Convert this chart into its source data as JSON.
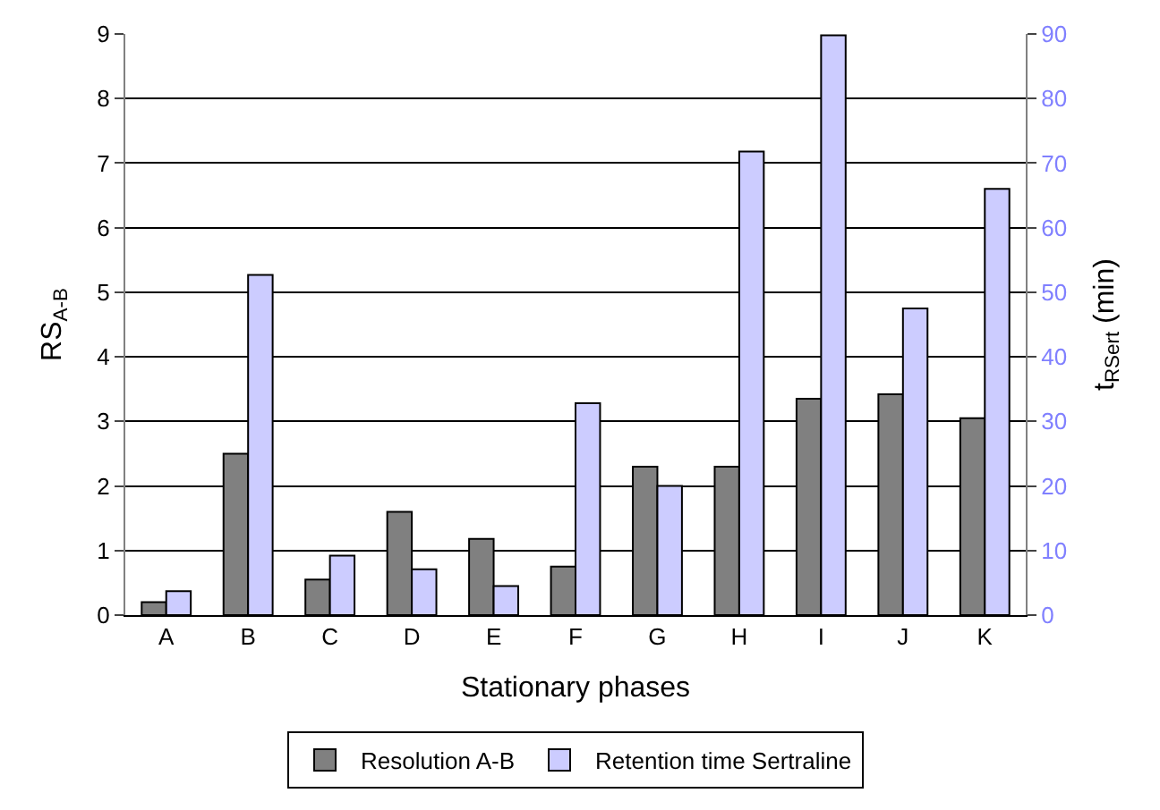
{
  "chart_data": {
    "type": "bar",
    "xlabel": "Stationary phases",
    "ylabel": "RS$_{A-B}$",
    "y2label": "t$_{RSert}$ (min)",
    "categories": [
      "A",
      "B",
      "C",
      "D",
      "E",
      "F",
      "G",
      "H",
      "I",
      "J",
      "K"
    ],
    "series": [
      {
        "name": "Resolution A-B",
        "color": "#808080",
        "values": [
          0.2,
          2.5,
          0.55,
          1.6,
          1.18,
          0.75,
          2.3,
          2.3,
          3.35,
          3.42,
          3.05
        ]
      },
      {
        "name": "Retention time Sertraline",
        "color": "#ccccff",
        "axis": "y2",
        "values": [
          3.7,
          52.7,
          9.2,
          7.1,
          4.5,
          32.8,
          20,
          71.8,
          89.8,
          47.5,
          66
        ]
      }
    ],
    "ylim": [
      0,
      9
    ],
    "yticks": [
      0,
      1,
      2,
      3,
      4,
      5,
      6,
      7,
      8,
      9
    ],
    "y2lim": [
      0,
      90
    ],
    "y2ticks": [
      0,
      10,
      20,
      30,
      40,
      50,
      60,
      70,
      80,
      90
    ],
    "grid": "y",
    "legend": "bottom"
  }
}
